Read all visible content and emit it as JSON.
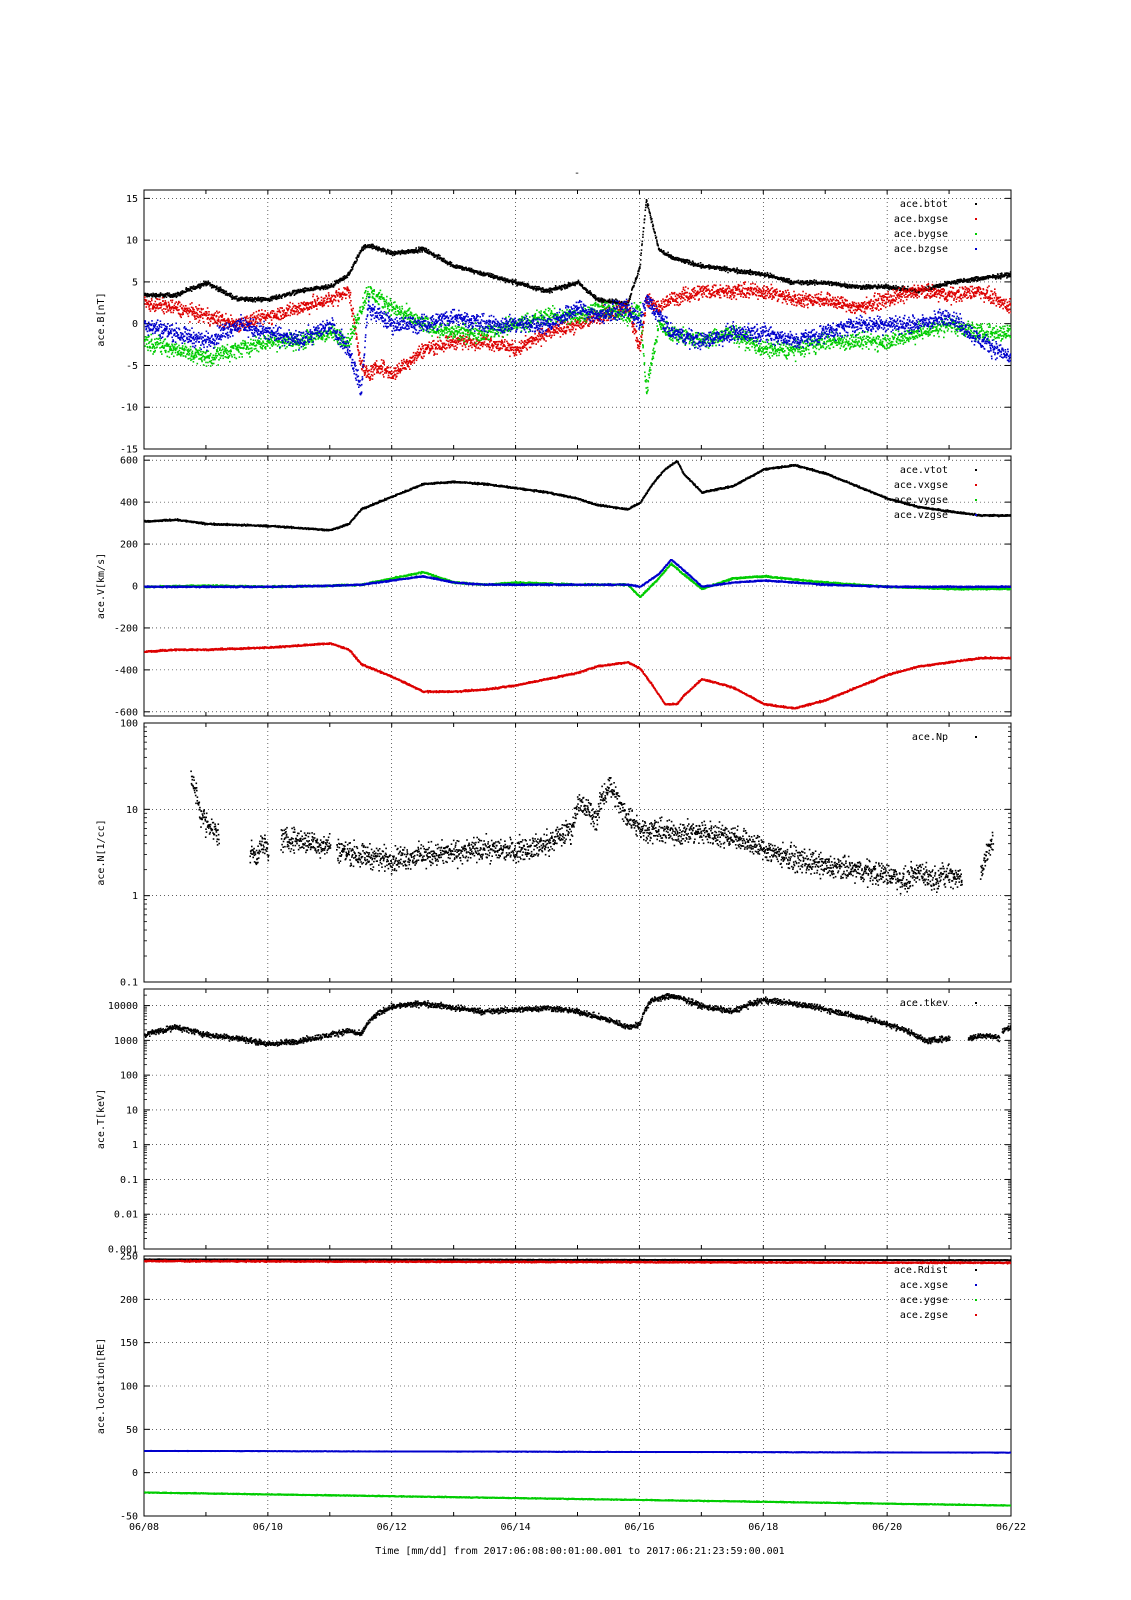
{
  "figure": {
    "title": "-",
    "x_label": "Time [mm/dd]  from 2017:06:08:00:01:00.001  to  2017:06:21:23:59:00.001",
    "x_ticks": [
      "06/08",
      "06/10",
      "06/12",
      "06/14",
      "06/16",
      "06/18",
      "06/20",
      "06/22"
    ]
  },
  "colors": {
    "black": "#000000",
    "red": "#dd0000",
    "green": "#00cc00",
    "blue": "#0000cc"
  },
  "chart_data": [
    {
      "type": "scatter",
      "ylabel": "ace.B[nT]",
      "ylim": [
        -15,
        16
      ],
      "y_scale": "linear",
      "y_ticks": [
        "-15",
        "-10",
        "-5",
        "0",
        "5",
        "10",
        "15"
      ],
      "y_tick_values": [
        -15,
        -10,
        -5,
        0,
        5,
        10,
        15
      ],
      "legend_position": "top-right",
      "grid": true,
      "series": [
        {
          "name": "ace.btot",
          "color": "#000000",
          "spread": 0.4,
          "x": [
            0,
            0.5,
            1,
            1.5,
            2,
            2.5,
            3,
            3.3,
            3.5,
            3.6,
            3.8,
            4,
            4.5,
            5,
            5.5,
            6,
            6.5,
            7,
            7.3,
            7.8,
            8,
            8.1,
            8.3,
            8.5,
            9,
            9.5,
            10,
            10.5,
            11,
            11.5,
            12,
            12.5,
            13,
            13.5,
            14
          ],
          "y": [
            3.5,
            3.5,
            5,
            3,
            3,
            4,
            4.5,
            6,
            9,
            9.5,
            9,
            8.5,
            9,
            7,
            6,
            5,
            4,
            5,
            3,
            2.5,
            7,
            15,
            9,
            8,
            7,
            6.5,
            6,
            5,
            5,
            4.5,
            4.5,
            4,
            5,
            5.5,
            6
          ]
        },
        {
          "name": "ace.bxgse",
          "color": "#dd0000",
          "spread": 1.3,
          "x": [
            0,
            0.5,
            1,
            1.5,
            2,
            2.5,
            3,
            3.3,
            3.5,
            3.6,
            3.8,
            4,
            4.5,
            5,
            5.5,
            6,
            6.5,
            7,
            7.3,
            7.8,
            8,
            8.1,
            8.3,
            8.5,
            9,
            9.5,
            10,
            10.5,
            11,
            11.5,
            12,
            12.5,
            13,
            13.5,
            14
          ],
          "y": [
            2.5,
            2,
            1,
            0,
            1,
            2,
            3,
            4,
            -5,
            -6,
            -5,
            -6,
            -3,
            -2,
            -2,
            -3,
            -1,
            0,
            1,
            2,
            -3,
            3,
            2,
            3,
            4,
            4,
            4,
            3,
            3,
            2,
            3,
            4,
            3.5,
            4,
            2
          ]
        },
        {
          "name": "ace.bygse",
          "color": "#00cc00",
          "spread": 1.5,
          "x": [
            0,
            0.5,
            1,
            1.5,
            2,
            2.5,
            3,
            3.3,
            3.5,
            3.6,
            3.8,
            4,
            4.5,
            5,
            5.5,
            6,
            6.5,
            7,
            7.3,
            7.8,
            8,
            8.1,
            8.3,
            8.5,
            9,
            9.5,
            10,
            10.5,
            11,
            11.5,
            12,
            12.5,
            13,
            13.5,
            14
          ],
          "y": [
            -2,
            -3,
            -4,
            -3,
            -2,
            -2,
            -1,
            -2,
            2,
            4,
            3,
            2,
            0,
            -1,
            -1,
            0,
            1,
            1,
            2,
            1,
            2,
            -8,
            0,
            -1,
            -2,
            -1,
            -3,
            -3,
            -2,
            -2,
            -2,
            -1,
            0,
            -1,
            -1
          ]
        },
        {
          "name": "ace.bzgse",
          "color": "#0000cc",
          "spread": 1.5,
          "x": [
            0,
            0.5,
            1,
            1.5,
            2,
            2.5,
            3,
            3.3,
            3.5,
            3.6,
            3.8,
            4,
            4.5,
            5,
            5.5,
            6,
            6.5,
            7,
            7.3,
            7.8,
            8,
            8.1,
            8.3,
            8.5,
            9,
            9.5,
            10,
            10.5,
            11,
            11.5,
            12,
            12.5,
            13,
            13.5,
            14
          ],
          "y": [
            0,
            -1,
            -2,
            0,
            -1,
            -2,
            0,
            -3,
            -8,
            2,
            1,
            0,
            0,
            1,
            0,
            0,
            0,
            2,
            1,
            2,
            0,
            3,
            1,
            -1,
            -2,
            -1,
            -1,
            -2,
            -1,
            0,
            0,
            0,
            1,
            -2,
            -4
          ]
        }
      ]
    },
    {
      "type": "scatter",
      "ylabel": "ace.V[km/s]",
      "ylim": [
        -620,
        620
      ],
      "y_scale": "linear",
      "y_ticks": [
        "-600",
        "-400",
        "-200",
        "0",
        "200",
        "400",
        "600"
      ],
      "y_tick_values": [
        -600,
        -400,
        -200,
        0,
        200,
        400,
        600
      ],
      "legend_position": "top-right",
      "grid": true,
      "series": [
        {
          "name": "ace.vtot",
          "color": "#000000",
          "spread": 6,
          "x": [
            0,
            0.5,
            1,
            1.5,
            2,
            2.5,
            3,
            3.3,
            3.5,
            4,
            4.5,
            5,
            5.5,
            6,
            6.5,
            7,
            7.3,
            7.8,
            8,
            8.2,
            8.4,
            8.6,
            8.7,
            9,
            9.5,
            10,
            10.5,
            11,
            11.5,
            12,
            12.5,
            13,
            13.5,
            14
          ],
          "y": [
            310,
            320,
            300,
            295,
            290,
            280,
            270,
            300,
            370,
            430,
            490,
            500,
            490,
            470,
            450,
            420,
            390,
            370,
            400,
            490,
            560,
            600,
            540,
            450,
            480,
            560,
            580,
            540,
            480,
            420,
            380,
            360,
            340,
            340
          ]
        },
        {
          "name": "ace.vxgse",
          "color": "#dd0000",
          "spread": 6,
          "x": [
            0,
            0.5,
            1,
            1.5,
            2,
            2.5,
            3,
            3.3,
            3.5,
            4,
            4.5,
            5,
            5.5,
            6,
            6.5,
            7,
            7.3,
            7.8,
            8,
            8.2,
            8.4,
            8.6,
            8.7,
            9,
            9.5,
            10,
            10.5,
            11,
            11.5,
            12,
            12.5,
            13,
            13.5,
            14
          ],
          "y": [
            -310,
            -300,
            -300,
            -295,
            -290,
            -280,
            -270,
            -300,
            -370,
            -430,
            -500,
            -500,
            -490,
            -470,
            -440,
            -410,
            -380,
            -360,
            -390,
            -470,
            -560,
            -560,
            -520,
            -440,
            -480,
            -560,
            -580,
            -540,
            -480,
            -420,
            -380,
            -360,
            -340,
            -340
          ]
        },
        {
          "name": "ace.vygse",
          "color": "#00cc00",
          "spread": 6,
          "x": [
            0,
            1,
            2,
            3,
            3.5,
            4,
            4.5,
            5,
            5.5,
            6,
            7,
            7.8,
            8,
            8.3,
            8.5,
            8.7,
            9,
            9.5,
            10,
            11,
            12,
            13,
            14
          ],
          "y": [
            0,
            5,
            0,
            5,
            10,
            40,
            70,
            20,
            10,
            20,
            10,
            10,
            -50,
            40,
            110,
            60,
            -10,
            40,
            50,
            20,
            0,
            -10,
            -10
          ]
        },
        {
          "name": "ace.vzgse",
          "color": "#0000cc",
          "spread": 5,
          "x": [
            0,
            1,
            2,
            3,
            3.5,
            4,
            4.5,
            5,
            5.5,
            6,
            7,
            7.8,
            8,
            8.3,
            8.5,
            8.7,
            9,
            9.5,
            10,
            11,
            12,
            13,
            14
          ],
          "y": [
            0,
            0,
            0,
            5,
            10,
            30,
            50,
            20,
            10,
            10,
            10,
            10,
            0,
            60,
            130,
            80,
            0,
            20,
            30,
            10,
            0,
            0,
            0
          ]
        }
      ]
    },
    {
      "type": "scatter",
      "ylabel": "ace.N[1/cc]",
      "ylim": [
        0.1,
        100
      ],
      "y_scale": "log",
      "y_ticks": [
        "0.1",
        "1",
        "10",
        "100"
      ],
      "y_tick_values": [
        0.1,
        1,
        10,
        100
      ],
      "legend_position": "top-right",
      "grid": true,
      "series": [
        {
          "name": "ace.Np",
          "color": "#000000",
          "spread": 0.2,
          "segments": [
            {
              "x": [
                0.75,
                0.8,
                0.9,
                1.0,
                1.1,
                1.2
              ],
              "y": [
                25,
                18,
                9,
                7,
                6,
                5
              ]
            },
            {
              "x": [
                1.7,
                1.8,
                1.9,
                2.0
              ],
              "y": [
                3.5,
                3,
                4,
                3.5
              ]
            },
            {
              "x": [
                2.2,
                2.5,
                2.8,
                3.0
              ],
              "y": [
                4.5,
                4.5,
                4,
                4
              ]
            },
            {
              "x": [
                3.1,
                3.5,
                4,
                4.5,
                5,
                5.5,
                6,
                6.5,
                6.9,
                7.0,
                7.3,
                7.5,
                7.7,
                8,
                8.5,
                9,
                9.5,
                10,
                10.5,
                11,
                11.5,
                12,
                12.3,
                12.5,
                12.7,
                13.0,
                13.2
              ],
              "y": [
                3.5,
                3,
                2.7,
                3,
                3.2,
                3.5,
                3.5,
                4,
                6,
                12,
                8,
                20,
                10,
                6,
                5.5,
                5.5,
                5,
                3.5,
                2.7,
                2.2,
                2,
                1.8,
                1.5,
                2,
                1.6,
                1.8,
                1.6
              ]
            },
            {
              "x": [
                13.5,
                13.6,
                13.7
              ],
              "y": [
                1.8,
                3,
                4.5
              ]
            },
            {
              "x": [
                14.0
              ],
              "y": [
                5
              ]
            }
          ]
        }
      ]
    },
    {
      "type": "scatter",
      "ylabel": "ace.T[keV]",
      "ylim": [
        0.001,
        30000
      ],
      "y_scale": "log",
      "y_ticks": [
        "0.001",
        "0.01",
        "0.1",
        "1",
        "10",
        "100",
        "1000",
        "10000"
      ],
      "y_tick_values": [
        0.001,
        0.01,
        0.1,
        1,
        10,
        100,
        1000,
        10000
      ],
      "legend_position": "top-right",
      "grid": true,
      "series": [
        {
          "name": "ace.tkev",
          "color": "#000000",
          "spread": 0.12,
          "segments": [
            {
              "x": [
                0,
                0.5,
                1,
                1.5,
                2,
                2.5,
                3,
                3.3,
                3.5,
                4,
                4.5,
                5,
                5.5,
                6,
                6.5,
                7,
                7.3,
                7.8,
                8,
                8.2,
                8.5,
                9,
                9.5,
                10,
                10.5,
                11,
                11.5,
                12,
                12.3,
                12.6,
                13.0
              ],
              "y": [
                1500,
                2500,
                1500,
                1200,
                800,
                1000,
                1500,
                2000,
                1500,
                10000,
                12000,
                9000,
                7000,
                8000,
                9000,
                7000,
                5000,
                2500,
                3000,
                15000,
                20000,
                10000,
                7000,
                15000,
                12000,
                8000,
                5000,
                3000,
                2000,
                1000,
                1200
              ]
            },
            {
              "x": [
                13.3,
                13.6,
                13.8
              ],
              "y": [
                1200,
                1500,
                1200
              ]
            },
            {
              "x": [
                13.85,
                14.0
              ],
              "y": [
                2000,
                2500
              ]
            }
          ]
        }
      ]
    },
    {
      "type": "scatter",
      "ylabel": "ace.location[RE]",
      "ylim": [
        -50,
        250
      ],
      "y_scale": "linear",
      "y_ticks": [
        "-50",
        "0",
        "50",
        "100",
        "150",
        "200",
        "250"
      ],
      "y_tick_values": [
        -50,
        0,
        50,
        100,
        150,
        200,
        250
      ],
      "legend_position": "top-right",
      "grid": true,
      "series": [
        {
          "name": "ace.Rdist",
          "color": "#000000",
          "spread": 0.4,
          "x": [
            0,
            14
          ],
          "y": [
            247,
            246
          ]
        },
        {
          "name": "ace.xgse",
          "color": "#0000cc",
          "spread": 0.4,
          "x": [
            0,
            14
          ],
          "y": [
            26,
            24
          ]
        },
        {
          "name": "ace.ygse",
          "color": "#00cc00",
          "spread": 0.8,
          "x": [
            0,
            14
          ],
          "y": [
            -22,
            -37
          ]
        },
        {
          "name": "ace.zgse",
          "color": "#dd0000",
          "spread": 1.2,
          "x": [
            0,
            14
          ],
          "y": [
            245,
            243
          ]
        }
      ]
    }
  ]
}
